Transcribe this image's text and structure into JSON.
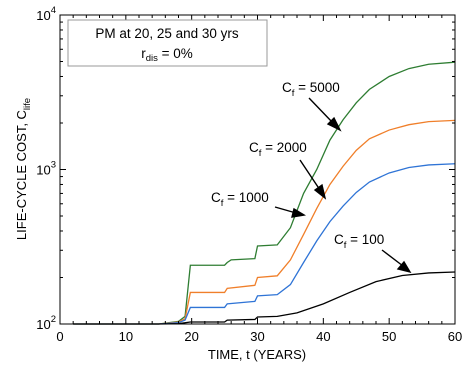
{
  "chart_data": {
    "type": "line",
    "title": "",
    "xlabel": "TIME, t (YEARS)",
    "ylabel_main": "LIFE-CYCLE COST, C",
    "ylabel_sub": "life",
    "xlim": [
      0,
      60
    ],
    "ylim": [
      100,
      10000
    ],
    "yscale": "log",
    "x_ticks": [
      0,
      10,
      20,
      30,
      40,
      50,
      60
    ],
    "x_tick_labels": [
      "0",
      "10",
      "20",
      "30",
      "40",
      "50",
      "60"
    ],
    "y_tick_labels": [
      {
        "base": "10",
        "exp": "2"
      },
      {
        "base": "10",
        "exp": "3"
      },
      {
        "base": "10",
        "exp": "4"
      }
    ],
    "grid": false,
    "legend_box": {
      "line1": "PM at 20, 25 and 30 yrs",
      "line2_main": "r",
      "line2_sub": "dis",
      "line2_rest": " = 0%"
    },
    "series": [
      {
        "label_main": "C",
        "label_sub": "f",
        "label_rest": " = 5000",
        "color": "#2e7d32",
        "points": [
          [
            2,
            100
          ],
          [
            15,
            100
          ],
          [
            18,
            104
          ],
          [
            19,
            112
          ],
          [
            19.8,
            240
          ],
          [
            25,
            240
          ],
          [
            25.4,
            250
          ],
          [
            26,
            260
          ],
          [
            29.6,
            265
          ],
          [
            30,
            320
          ],
          [
            33,
            325
          ],
          [
            35,
            420
          ],
          [
            37,
            700
          ],
          [
            39,
            1000
          ],
          [
            41,
            1550
          ],
          [
            43,
            2100
          ],
          [
            45,
            2700
          ],
          [
            47,
            3300
          ],
          [
            50,
            4000
          ],
          [
            53,
            4500
          ],
          [
            56,
            4800
          ],
          [
            60,
            4950
          ]
        ]
      },
      {
        "label_main": "C",
        "label_sub": "f",
        "label_rest": " = 2000",
        "color": "#f07f2a",
        "points": [
          [
            2,
            100
          ],
          [
            15,
            100
          ],
          [
            18,
            103
          ],
          [
            19,
            108
          ],
          [
            19.8,
            160
          ],
          [
            25,
            160
          ],
          [
            25.4,
            170
          ],
          [
            29.6,
            178
          ],
          [
            30,
            200
          ],
          [
            33,
            205
          ],
          [
            35,
            260
          ],
          [
            37,
            380
          ],
          [
            39,
            560
          ],
          [
            41,
            800
          ],
          [
            43,
            1050
          ],
          [
            45,
            1330
          ],
          [
            47,
            1580
          ],
          [
            50,
            1800
          ],
          [
            53,
            1950
          ],
          [
            56,
            2040
          ],
          [
            60,
            2080
          ]
        ]
      },
      {
        "label_main": "C",
        "label_sub": "f",
        "label_rest": " = 1000",
        "color": "#2f74d6",
        "points": [
          [
            2,
            100
          ],
          [
            15,
            100
          ],
          [
            18,
            102
          ],
          [
            19,
            106
          ],
          [
            19.8,
            128
          ],
          [
            25,
            128
          ],
          [
            25.4,
            135
          ],
          [
            29.6,
            140
          ],
          [
            30,
            152
          ],
          [
            33,
            155
          ],
          [
            35,
            180
          ],
          [
            37,
            250
          ],
          [
            39,
            345
          ],
          [
            41,
            460
          ],
          [
            43,
            580
          ],
          [
            45,
            710
          ],
          [
            47,
            830
          ],
          [
            50,
            950
          ],
          [
            53,
            1030
          ],
          [
            56,
            1070
          ],
          [
            60,
            1090
          ]
        ]
      },
      {
        "label_main": "C",
        "label_sub": "f",
        "label_rest": " = 100",
        "color": "#000000",
        "points": [
          [
            2,
            100
          ],
          [
            15,
            100
          ],
          [
            18,
            100.5
          ],
          [
            19.8,
            103
          ],
          [
            25,
            103
          ],
          [
            25.4,
            106
          ],
          [
            29.6,
            107
          ],
          [
            30,
            111
          ],
          [
            33,
            112
          ],
          [
            36,
            118
          ],
          [
            40,
            135
          ],
          [
            44,
            160
          ],
          [
            48,
            188
          ],
          [
            52,
            206
          ],
          [
            56,
            214
          ],
          [
            60,
            217
          ]
        ]
      }
    ]
  }
}
